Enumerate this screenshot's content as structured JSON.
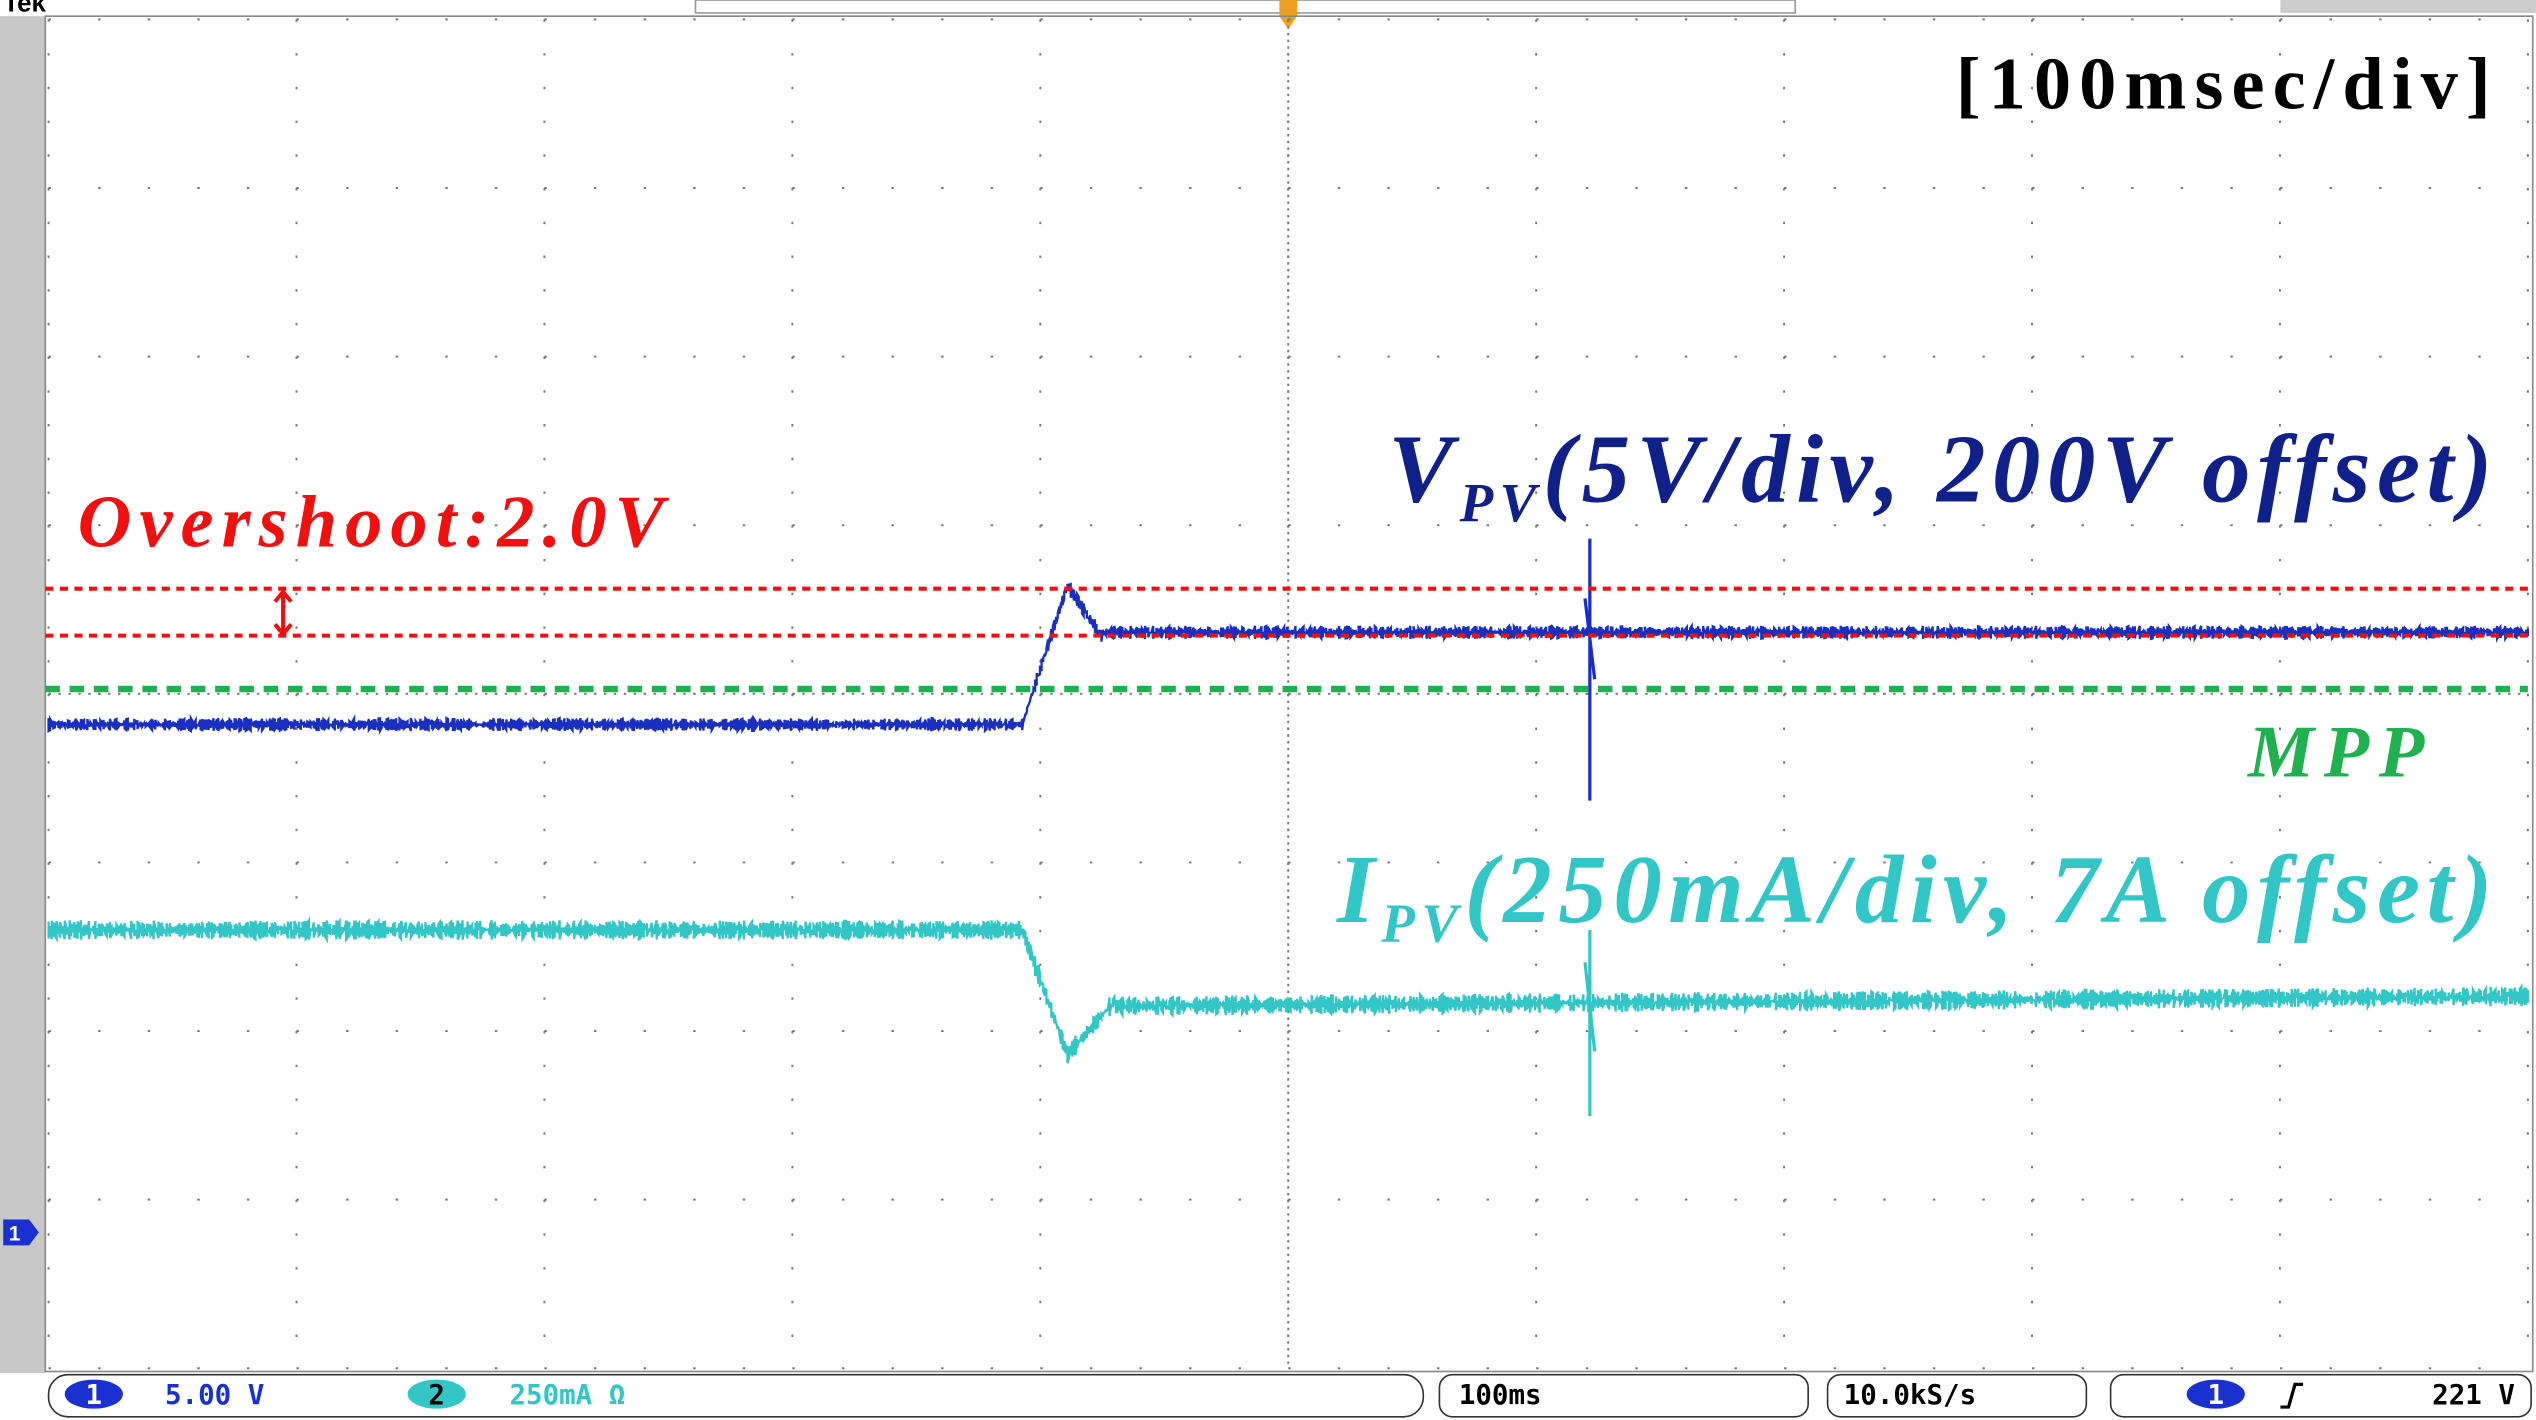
{
  "header": {
    "brand": "Tek"
  },
  "annotations": {
    "timebase": "[100msec/div]",
    "vpv": {
      "main": "V",
      "sub": "PV",
      "rest": "(5V/div, 200V offset)"
    },
    "overshoot": "Overshoot:2.0V",
    "mpp": "MPP",
    "ipv": {
      "main": "I",
      "sub": "PV",
      "rest": "(250mA/div, 7A offset)"
    }
  },
  "status_bar": {
    "ch1_label": "1",
    "ch1_scale": "5.00 V",
    "ch2_label": "2",
    "ch2_scale": "250mA Ω",
    "timebase": "100ms",
    "sample_rate": "10.0kS/s",
    "trigger_channel": "1",
    "trigger_level": "221 V"
  },
  "channel_marker": "1"
}
